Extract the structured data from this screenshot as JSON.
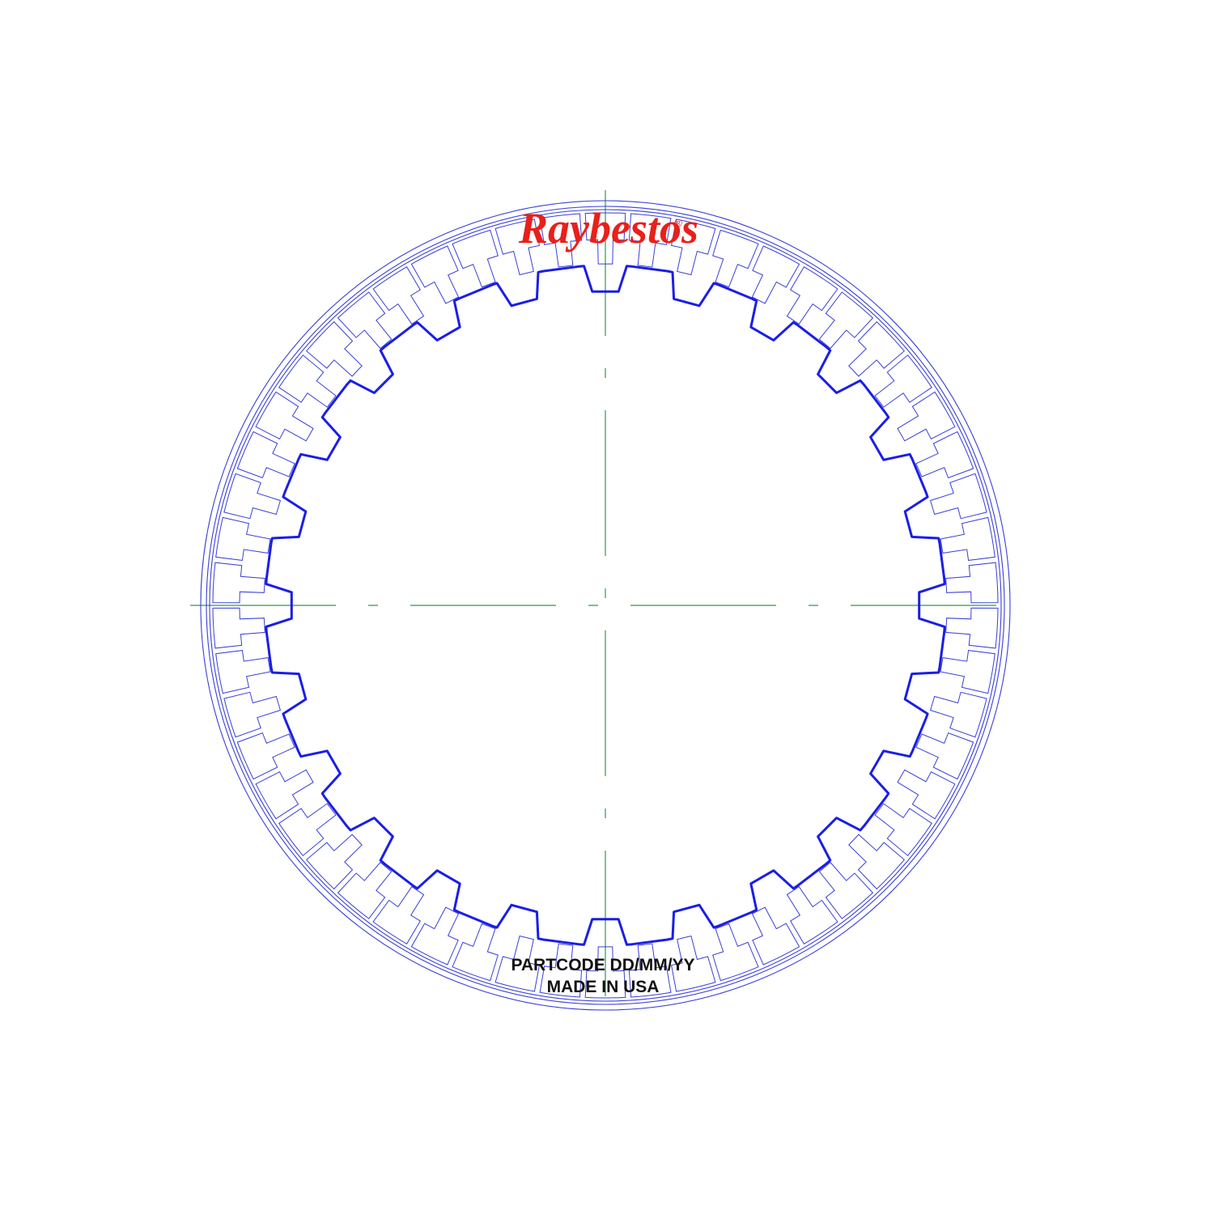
{
  "logo": {
    "brand": "Raybestos",
    "registered_mark": "®"
  },
  "stamp": {
    "line1": "PARTCODE DD/MM/YY",
    "line2": "MADE IN USA"
  },
  "drawing": {
    "outer_pads_count": 54,
    "inner_teeth_count": 24,
    "colors": {
      "outline": "#3a3fd6",
      "spline": "#1a1ee6",
      "centerline": "#2e9a4a",
      "logo": "#e8201a",
      "text": "#111111"
    }
  }
}
